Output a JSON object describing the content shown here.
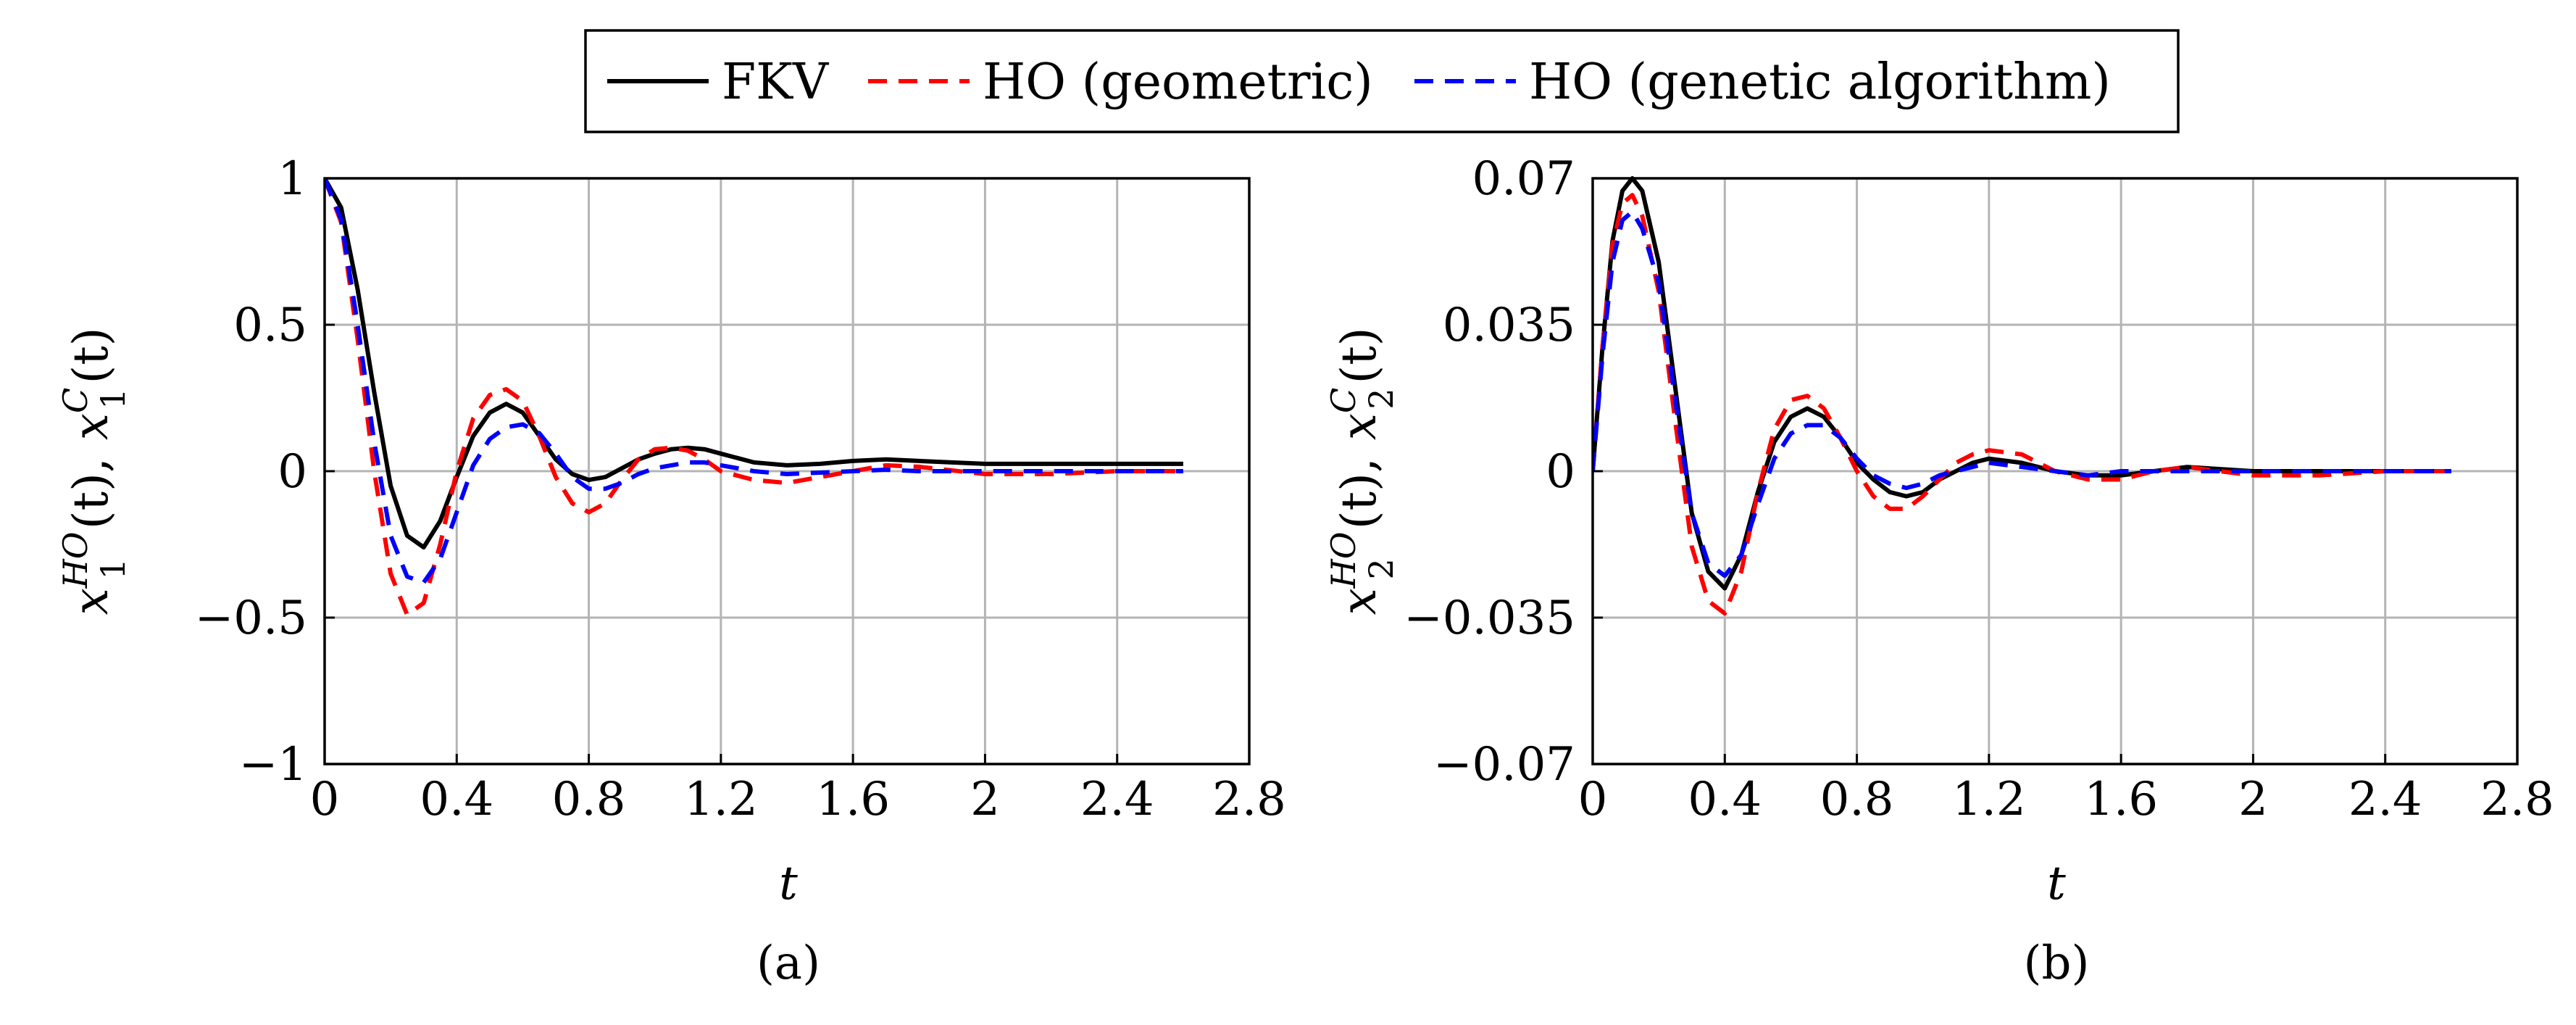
{
  "legend": {
    "entries": [
      {
        "label": "FKV",
        "color": "#000000",
        "dash": "solid"
      },
      {
        "label": "HO (geometric)",
        "color": "#ff0000",
        "dash": "dashed"
      },
      {
        "label": "HO (genetic algorithm)",
        "color": "#0000ff",
        "dash": "dashed"
      }
    ]
  },
  "chart_data": [
    {
      "type": "line",
      "caption": "(a)",
      "xlabel": "t",
      "ylabel": {
        "a": "x",
        "a_sub": "1",
        "a_sup": "HO",
        "a_arg": "(t),",
        "b": "x",
        "b_sub": "1",
        "b_sup": "C",
        "b_arg": "(t)"
      },
      "xlim": [
        0,
        2.8
      ],
      "ylim": [
        -1,
        1
      ],
      "xticks": [
        0,
        0.4,
        0.8,
        1.2,
        1.6,
        2,
        2.4,
        2.8
      ],
      "xtick_labels": [
        "0",
        "0.4",
        "0.8",
        "1.2",
        "1.6",
        "2",
        "2.4",
        "2.8"
      ],
      "yticks": [
        -1,
        -0.5,
        0,
        0.5,
        1
      ],
      "ytick_labels": [
        "−1",
        "−0.5",
        "0",
        "0.5",
        "1"
      ],
      "grid": true,
      "series": [
        {
          "name": "FKV",
          "color": "#000000",
          "dash": "solid",
          "x": [
            0,
            0.05,
            0.1,
            0.15,
            0.2,
            0.25,
            0.3,
            0.35,
            0.4,
            0.45,
            0.5,
            0.55,
            0.6,
            0.65,
            0.7,
            0.75,
            0.8,
            0.85,
            0.9,
            0.95,
            1.0,
            1.05,
            1.1,
            1.15,
            1.2,
            1.3,
            1.4,
            1.5,
            1.6,
            1.7,
            1.8,
            2.0,
            2.2,
            2.4,
            2.6
          ],
          "y": [
            1.0,
            0.9,
            0.62,
            0.27,
            -0.05,
            -0.22,
            -0.26,
            -0.17,
            -0.02,
            0.12,
            0.2,
            0.23,
            0.2,
            0.12,
            0.04,
            -0.01,
            -0.03,
            -0.02,
            0.01,
            0.04,
            0.06,
            0.075,
            0.08,
            0.075,
            0.06,
            0.03,
            0.02,
            0.025,
            0.035,
            0.04,
            0.035,
            0.025,
            0.025,
            0.025,
            0.025
          ]
        },
        {
          "name": "HO (geometric)",
          "color": "#ff0000",
          "dash": "dashed",
          "x": [
            0,
            0.05,
            0.1,
            0.15,
            0.2,
            0.25,
            0.3,
            0.35,
            0.4,
            0.45,
            0.5,
            0.55,
            0.6,
            0.65,
            0.7,
            0.75,
            0.8,
            0.85,
            0.9,
            0.95,
            1.0,
            1.05,
            1.1,
            1.15,
            1.2,
            1.3,
            1.4,
            1.5,
            1.6,
            1.7,
            1.8,
            2.0,
            2.2,
            2.4,
            2.6
          ],
          "y": [
            1.0,
            0.85,
            0.45,
            0.0,
            -0.35,
            -0.49,
            -0.45,
            -0.25,
            0.0,
            0.18,
            0.26,
            0.28,
            0.24,
            0.12,
            -0.02,
            -0.11,
            -0.14,
            -0.11,
            -0.03,
            0.04,
            0.075,
            0.08,
            0.07,
            0.04,
            0.0,
            -0.03,
            -0.04,
            -0.02,
            0.0,
            0.02,
            0.015,
            -0.01,
            -0.01,
            0.0,
            0.0
          ]
        },
        {
          "name": "HO (genetic algorithm)",
          "color": "#0000ff",
          "dash": "dashed",
          "x": [
            0,
            0.05,
            0.1,
            0.15,
            0.2,
            0.25,
            0.3,
            0.35,
            0.4,
            0.45,
            0.5,
            0.55,
            0.6,
            0.65,
            0.7,
            0.75,
            0.8,
            0.85,
            0.9,
            0.95,
            1.0,
            1.05,
            1.1,
            1.15,
            1.2,
            1.3,
            1.4,
            1.5,
            1.6,
            1.7,
            1.8,
            2.0,
            2.2,
            2.4,
            2.6
          ],
          "y": [
            1.0,
            0.86,
            0.5,
            0.1,
            -0.22,
            -0.36,
            -0.38,
            -0.3,
            -0.14,
            0.02,
            0.11,
            0.15,
            0.16,
            0.13,
            0.06,
            -0.02,
            -0.06,
            -0.06,
            -0.04,
            -0.01,
            0.01,
            0.02,
            0.03,
            0.03,
            0.02,
            0.0,
            -0.01,
            -0.005,
            0.0,
            0.005,
            0.0,
            0.0,
            0.0,
            0.0,
            0.0
          ]
        }
      ]
    },
    {
      "type": "line",
      "caption": "(b)",
      "xlabel": "t",
      "ylabel": {
        "a": "x",
        "a_sub": "2",
        "a_sup": "HO",
        "a_arg": "(t),",
        "b": "x",
        "b_sub": "2",
        "b_sup": "C",
        "b_arg": "(t)"
      },
      "xlim": [
        0,
        2.8
      ],
      "ylim": [
        -0.07,
        0.07
      ],
      "xticks": [
        0,
        0.4,
        0.8,
        1.2,
        1.6,
        2,
        2.4,
        2.8
      ],
      "xtick_labels": [
        "0",
        "0.4",
        "0.8",
        "1.2",
        "1.6",
        "2",
        "2.4",
        "2.8"
      ],
      "yticks": [
        -0.07,
        -0.035,
        0,
        0.035,
        0.07
      ],
      "ytick_labels": [
        "−0.07",
        "−0.035",
        "0",
        "0.035",
        "0.07"
      ],
      "grid": true,
      "series": [
        {
          "name": "FKV",
          "color": "#000000",
          "dash": "solid",
          "x": [
            0,
            0.03,
            0.06,
            0.09,
            0.12,
            0.15,
            0.2,
            0.25,
            0.3,
            0.35,
            0.4,
            0.45,
            0.5,
            0.55,
            0.6,
            0.65,
            0.7,
            0.75,
            0.8,
            0.85,
            0.9,
            0.95,
            1.0,
            1.05,
            1.1,
            1.15,
            1.2,
            1.3,
            1.4,
            1.5,
            1.6,
            1.7,
            1.8,
            2.0,
            2.2,
            2.4,
            2.6
          ],
          "y": [
            0.0,
            0.03,
            0.055,
            0.067,
            0.07,
            0.067,
            0.05,
            0.02,
            -0.01,
            -0.024,
            -0.028,
            -0.02,
            -0.005,
            0.007,
            0.013,
            0.015,
            0.013,
            0.008,
            0.002,
            -0.002,
            -0.005,
            -0.006,
            -0.005,
            -0.002,
            0.0,
            0.002,
            0.003,
            0.002,
            0.0,
            -0.001,
            -0.001,
            0.0,
            0.001,
            0.0,
            0.0,
            0.0,
            0.0
          ]
        },
        {
          "name": "HO (geometric)",
          "color": "#ff0000",
          "dash": "dashed",
          "x": [
            0,
            0.03,
            0.06,
            0.09,
            0.12,
            0.15,
            0.2,
            0.25,
            0.3,
            0.35,
            0.4,
            0.45,
            0.5,
            0.55,
            0.6,
            0.65,
            0.7,
            0.75,
            0.8,
            0.85,
            0.9,
            0.95,
            1.0,
            1.05,
            1.1,
            1.15,
            1.2,
            1.3,
            1.4,
            1.5,
            1.6,
            1.7,
            1.8,
            2.0,
            2.2,
            2.4,
            2.6
          ],
          "y": [
            0.0,
            0.03,
            0.054,
            0.064,
            0.066,
            0.061,
            0.043,
            0.012,
            -0.018,
            -0.031,
            -0.034,
            -0.024,
            -0.005,
            0.01,
            0.017,
            0.018,
            0.015,
            0.008,
            0.0,
            -0.006,
            -0.009,
            -0.009,
            -0.006,
            -0.002,
            0.002,
            0.004,
            0.005,
            0.004,
            0.0,
            -0.002,
            -0.002,
            0.0,
            0.001,
            -0.001,
            -0.001,
            0.0,
            0.0
          ]
        },
        {
          "name": "HO (genetic algorithm)",
          "color": "#0000ff",
          "dash": "dashed",
          "x": [
            0,
            0.03,
            0.06,
            0.09,
            0.12,
            0.15,
            0.2,
            0.25,
            0.3,
            0.35,
            0.4,
            0.45,
            0.5,
            0.55,
            0.6,
            0.65,
            0.7,
            0.75,
            0.8,
            0.85,
            0.9,
            0.95,
            1.0,
            1.05,
            1.1,
            1.15,
            1.2,
            1.3,
            1.4,
            1.5,
            1.6,
            1.7,
            1.8,
            2.0,
            2.2,
            2.4,
            2.6
          ],
          "y": [
            0.0,
            0.028,
            0.05,
            0.06,
            0.062,
            0.058,
            0.045,
            0.017,
            -0.01,
            -0.022,
            -0.025,
            -0.02,
            -0.008,
            0.003,
            0.009,
            0.011,
            0.011,
            0.008,
            0.003,
            -0.001,
            -0.003,
            -0.004,
            -0.003,
            -0.001,
            0.0,
            0.001,
            0.002,
            0.001,
            0.0,
            -0.001,
            0.0,
            0.0,
            0.0,
            0.0,
            0.0,
            0.0,
            0.0
          ]
        }
      ]
    }
  ]
}
